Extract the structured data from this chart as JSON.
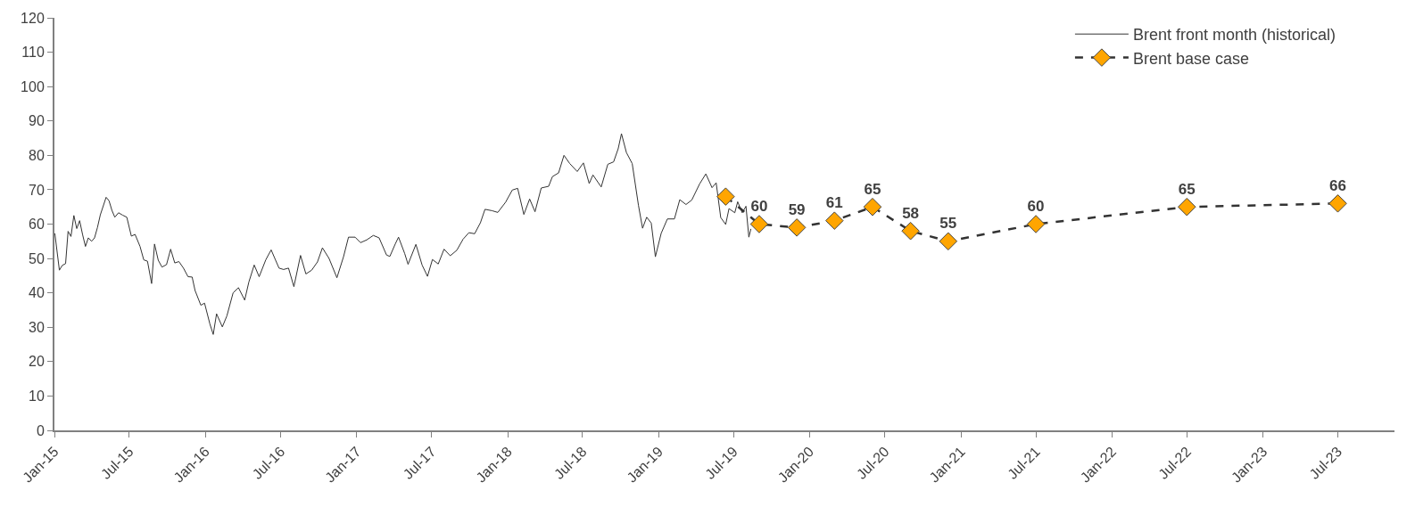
{
  "chart_data": {
    "type": "line",
    "xlim": [
      "2015-01-01",
      "2023-11-15"
    ],
    "xticks": [
      {
        "value": "2015-01",
        "label": "Jan-15"
      },
      {
        "value": "2015-07",
        "label": "Jul-15"
      },
      {
        "value": "2016-01",
        "label": "Jan-16"
      },
      {
        "value": "2016-07",
        "label": "Jul-16"
      },
      {
        "value": "2017-01",
        "label": "Jan-17"
      },
      {
        "value": "2017-07",
        "label": "Jul-17"
      },
      {
        "value": "2018-01",
        "label": "Jan-18"
      },
      {
        "value": "2018-07",
        "label": "Jul-18"
      },
      {
        "value": "2019-01",
        "label": "Jan-19"
      },
      {
        "value": "2019-07",
        "label": "Jul-19"
      },
      {
        "value": "2020-01",
        "label": "Jan-20"
      },
      {
        "value": "2020-07",
        "label": "Jul-20"
      },
      {
        "value": "2021-01",
        "label": "Jan-21"
      },
      {
        "value": "2021-07",
        "label": "Jul-21"
      },
      {
        "value": "2022-01",
        "label": "Jan-22"
      },
      {
        "value": "2022-07",
        "label": "Jul-22"
      },
      {
        "value": "2023-01",
        "label": "Jan-23"
      },
      {
        "value": "2023-07",
        "label": "Jul-23"
      }
    ],
    "ylim": [
      0,
      120
    ],
    "yticks": [
      0,
      10,
      20,
      30,
      40,
      50,
      60,
      70,
      80,
      90,
      100,
      110,
      120
    ],
    "legend": "top right",
    "series": [
      {
        "name": "Brent front month (historical)",
        "color": "#333333",
        "marker": "none",
        "line_style": "solid",
        "x": [
          "2015-01-02",
          "2015-01-13",
          "2015-01-20",
          "2015-01-28",
          "2015-02-03",
          "2015-02-10",
          "2015-02-17",
          "2015-02-24",
          "2015-03-03",
          "2015-03-10",
          "2015-03-17",
          "2015-03-24",
          "2015-04-01",
          "2015-04-08",
          "2015-04-15",
          "2015-04-22",
          "2015-05-06",
          "2015-05-13",
          "2015-05-20",
          "2015-05-27",
          "2015-06-05",
          "2015-06-15",
          "2015-06-25",
          "2015-07-06",
          "2015-07-15",
          "2015-07-27",
          "2015-08-05",
          "2015-08-14",
          "2015-08-24",
          "2015-08-31",
          "2015-09-09",
          "2015-09-18",
          "2015-09-29",
          "2015-10-09",
          "2015-10-19",
          "2015-10-29",
          "2015-11-09",
          "2015-11-20",
          "2015-11-30",
          "2015-12-07",
          "2015-12-21",
          "2015-12-30",
          "2016-01-12",
          "2016-01-20",
          "2016-01-28",
          "2016-02-11",
          "2016-02-22",
          "2016-03-08",
          "2016-03-21",
          "2016-04-05",
          "2016-04-15",
          "2016-04-28",
          "2016-05-10",
          "2016-05-26",
          "2016-06-08",
          "2016-06-27",
          "2016-07-08",
          "2016-07-20",
          "2016-08-02",
          "2016-08-18",
          "2016-08-31",
          "2016-09-14",
          "2016-09-28",
          "2016-10-10",
          "2016-10-26",
          "2016-11-14",
          "2016-11-30",
          "2016-12-12",
          "2016-12-28",
          "2017-01-10",
          "2017-01-25",
          "2017-02-10",
          "2017-02-24",
          "2017-03-14",
          "2017-03-22",
          "2017-04-04",
          "2017-04-12",
          "2017-04-27",
          "2017-05-05",
          "2017-05-24",
          "2017-06-08",
          "2017-06-21",
          "2017-07-03",
          "2017-07-17",
          "2017-07-31",
          "2017-08-15",
          "2017-08-31",
          "2017-09-15",
          "2017-09-29",
          "2017-10-13",
          "2017-10-27",
          "2017-11-07",
          "2017-11-24",
          "2017-12-08",
          "2017-12-27",
          "2018-01-12",
          "2018-01-25",
          "2018-02-09",
          "2018-02-23",
          "2018-03-08",
          "2018-03-23",
          "2018-04-10",
          "2018-04-19",
          "2018-05-04",
          "2018-05-17",
          "2018-05-31",
          "2018-06-18",
          "2018-07-03",
          "2018-07-17",
          "2018-07-26",
          "2018-08-15",
          "2018-08-31",
          "2018-09-14",
          "2018-09-25",
          "2018-10-03",
          "2018-10-15",
          "2018-10-29",
          "2018-11-13",
          "2018-11-23",
          "2018-12-03",
          "2018-12-14",
          "2018-12-24",
          "2019-01-07",
          "2019-01-22",
          "2019-02-08",
          "2019-02-21",
          "2019-03-08",
          "2019-03-22",
          "2019-04-10",
          "2019-04-25",
          "2019-05-10",
          "2019-05-20",
          "2019-05-31",
          "2019-06-12",
          "2019-06-20",
          "2019-07-04",
          "2019-07-11",
          "2019-07-22",
          "2019-07-31",
          "2019-08-07",
          "2019-08-12"
        ],
        "values": [
          57.3,
          46.6,
          48.0,
          48.5,
          57.9,
          56.4,
          62.5,
          58.7,
          61.0,
          57.0,
          53.5,
          56.0,
          55.0,
          56.0,
          59.0,
          62.7,
          67.8,
          66.8,
          64.0,
          62.0,
          63.3,
          62.6,
          62.0,
          56.5,
          57.0,
          53.5,
          49.6,
          49.2,
          42.7,
          54.2,
          49.5,
          47.5,
          48.2,
          52.7,
          48.7,
          49.1,
          47.2,
          44.7,
          44.6,
          40.7,
          36.4,
          37.0,
          30.9,
          27.9,
          33.9,
          30.1,
          33.3,
          40.0,
          41.5,
          37.9,
          43.1,
          48.1,
          44.7,
          49.6,
          52.5,
          47.2,
          46.8,
          47.2,
          41.8,
          50.9,
          45.5,
          46.6,
          49.0,
          53.1,
          50.0,
          44.4,
          50.5,
          56.2,
          56.2,
          54.6,
          55.4,
          56.7,
          56.0,
          51.0,
          50.6,
          54.2,
          56.2,
          51.4,
          48.3,
          54.1,
          48.1,
          44.8,
          49.7,
          48.4,
          52.7,
          50.8,
          52.4,
          55.6,
          57.5,
          57.2,
          60.4,
          64.3,
          63.9,
          63.4,
          66.4,
          69.9,
          70.4,
          62.8,
          67.3,
          63.6,
          70.5,
          71.0,
          73.8,
          74.9,
          80.0,
          77.6,
          75.3,
          77.8,
          71.8,
          74.3,
          70.8,
          77.4,
          78.1,
          81.9,
          86.3,
          80.8,
          77.6,
          65.5,
          58.8,
          62.0,
          60.3,
          50.5,
          57.3,
          61.5,
          61.5,
          67.1,
          65.7,
          67.0,
          71.7,
          74.6,
          70.6,
          72.0,
          61.9,
          59.9,
          64.5,
          63.3,
          66.5,
          63.3,
          65.2,
          56.2,
          58.6
        ]
      },
      {
        "name": "Brent base case",
        "color": "#ffa500",
        "marker": "diamond",
        "line_style": "dashed",
        "x": [
          "2019-06-12",
          "2019-09",
          "2019-12",
          "2020-03",
          "2020-06",
          "2020-09",
          "2020-12",
          "2021-07",
          "2022-07",
          "2023-07"
        ],
        "values": [
          68,
          60,
          59,
          61,
          65,
          58,
          55,
          60,
          65,
          66
        ],
        "value_labels": [
          null,
          "60",
          "59",
          "61",
          "65",
          "58",
          "55",
          "60",
          "65",
          "66"
        ]
      }
    ]
  }
}
